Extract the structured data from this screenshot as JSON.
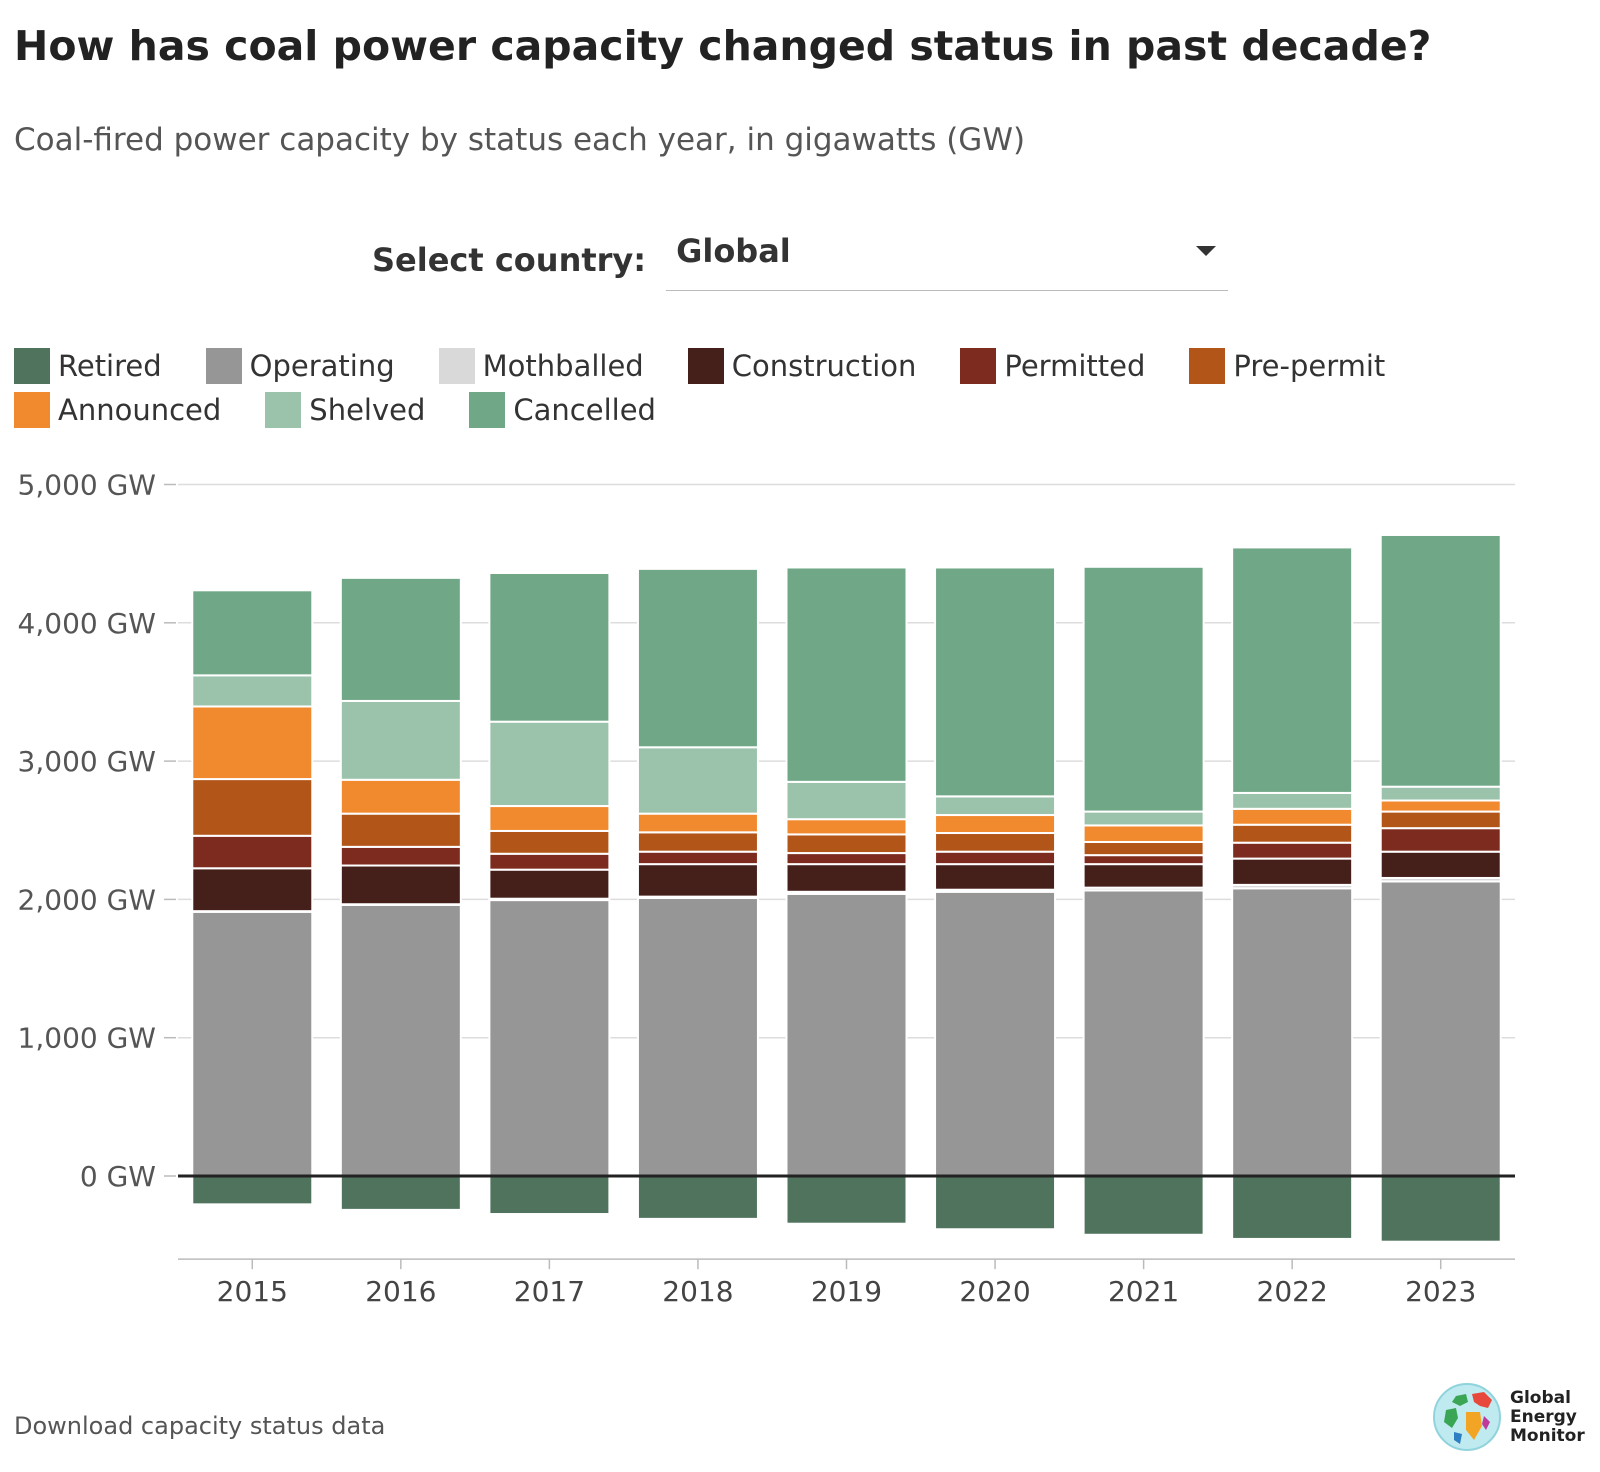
{
  "title": "How has coal power capacity changed status in past decade?",
  "subtitle": "Coal-fired power capacity by status each year, in gigawatts (GW)",
  "selector": {
    "label": "Select country:",
    "value": "Global"
  },
  "footer": {
    "link": "Download capacity status data"
  },
  "logo": {
    "line1": "Global",
    "line2": "Energy",
    "line3": "Monitor"
  },
  "colors": {
    "Retired": "#4f735d",
    "Operating": "#969696",
    "Mothballed": "#d9d9d9",
    "Construction": "#45201a",
    "Permitted": "#7d2b1f",
    "Pre-permit": "#b25519",
    "Announced": "#f1892e",
    "Shelved": "#9bc2ab",
    "Cancelled": "#70a786"
  },
  "chart_data": {
    "type": "bar",
    "stacked": true,
    "categories": [
      "2015",
      "2016",
      "2017",
      "2018",
      "2019",
      "2020",
      "2021",
      "2022",
      "2023"
    ],
    "ylim": [
      -500,
      5000
    ],
    "yticks": [
      0,
      1000,
      2000,
      3000,
      4000,
      5000
    ],
    "ytick_labels": [
      "0 GW",
      "1,000 GW",
      "2,000 GW",
      "3,000 GW",
      "4,000 GW",
      "5,000 GW"
    ],
    "legend_position": "top",
    "grid": true,
    "series": [
      {
        "name": "Retired",
        "values": [
          -205,
          -245,
          -275,
          -310,
          -345,
          -385,
          -425,
          -455,
          -475
        ]
      },
      {
        "name": "Operating",
        "values": [
          1910,
          1960,
          1995,
          2010,
          2040,
          2055,
          2065,
          2080,
          2130
        ]
      },
      {
        "name": "Mothballed",
        "values": [
          5,
          5,
          10,
          10,
          15,
          15,
          20,
          25,
          25
        ]
      },
      {
        "name": "Construction",
        "values": [
          310,
          280,
          210,
          235,
          200,
          185,
          170,
          190,
          190
        ]
      },
      {
        "name": "Permitted",
        "values": [
          235,
          135,
          115,
          90,
          80,
          90,
          65,
          115,
          170
        ]
      },
      {
        "name": "Pre-permit",
        "values": [
          410,
          240,
          165,
          140,
          135,
          135,
          95,
          130,
          120
        ]
      },
      {
        "name": "Announced",
        "values": [
          525,
          245,
          180,
          135,
          110,
          130,
          120,
          115,
          80
        ]
      },
      {
        "name": "Shelved",
        "values": [
          225,
          570,
          610,
          480,
          270,
          135,
          100,
          115,
          100
        ]
      },
      {
        "name": "Cancelled",
        "values": [
          615,
          890,
          1075,
          1290,
          1550,
          1655,
          1770,
          1775,
          1820
        ]
      }
    ]
  }
}
